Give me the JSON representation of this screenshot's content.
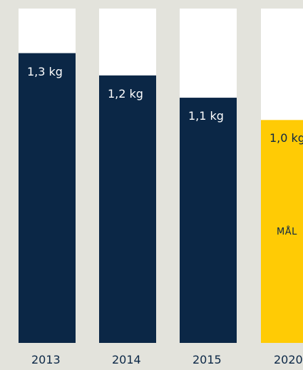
{
  "chart_data": {
    "type": "bar",
    "categories": [
      "2013",
      "2014",
      "2015",
      "2020"
    ],
    "values": [
      1.3,
      1.2,
      1.1,
      1.0
    ],
    "value_labels": [
      "1,3 kg",
      "1,2 kg",
      "1,1 kg",
      "1,0 kg"
    ],
    "goal_label": "MÅL",
    "ylim": [
      0,
      1.5
    ],
    "colors": {
      "background": "#e3e3dc",
      "column": "#ffffff",
      "actual": "#0b2746",
      "goal": "#ffcb05"
    }
  }
}
